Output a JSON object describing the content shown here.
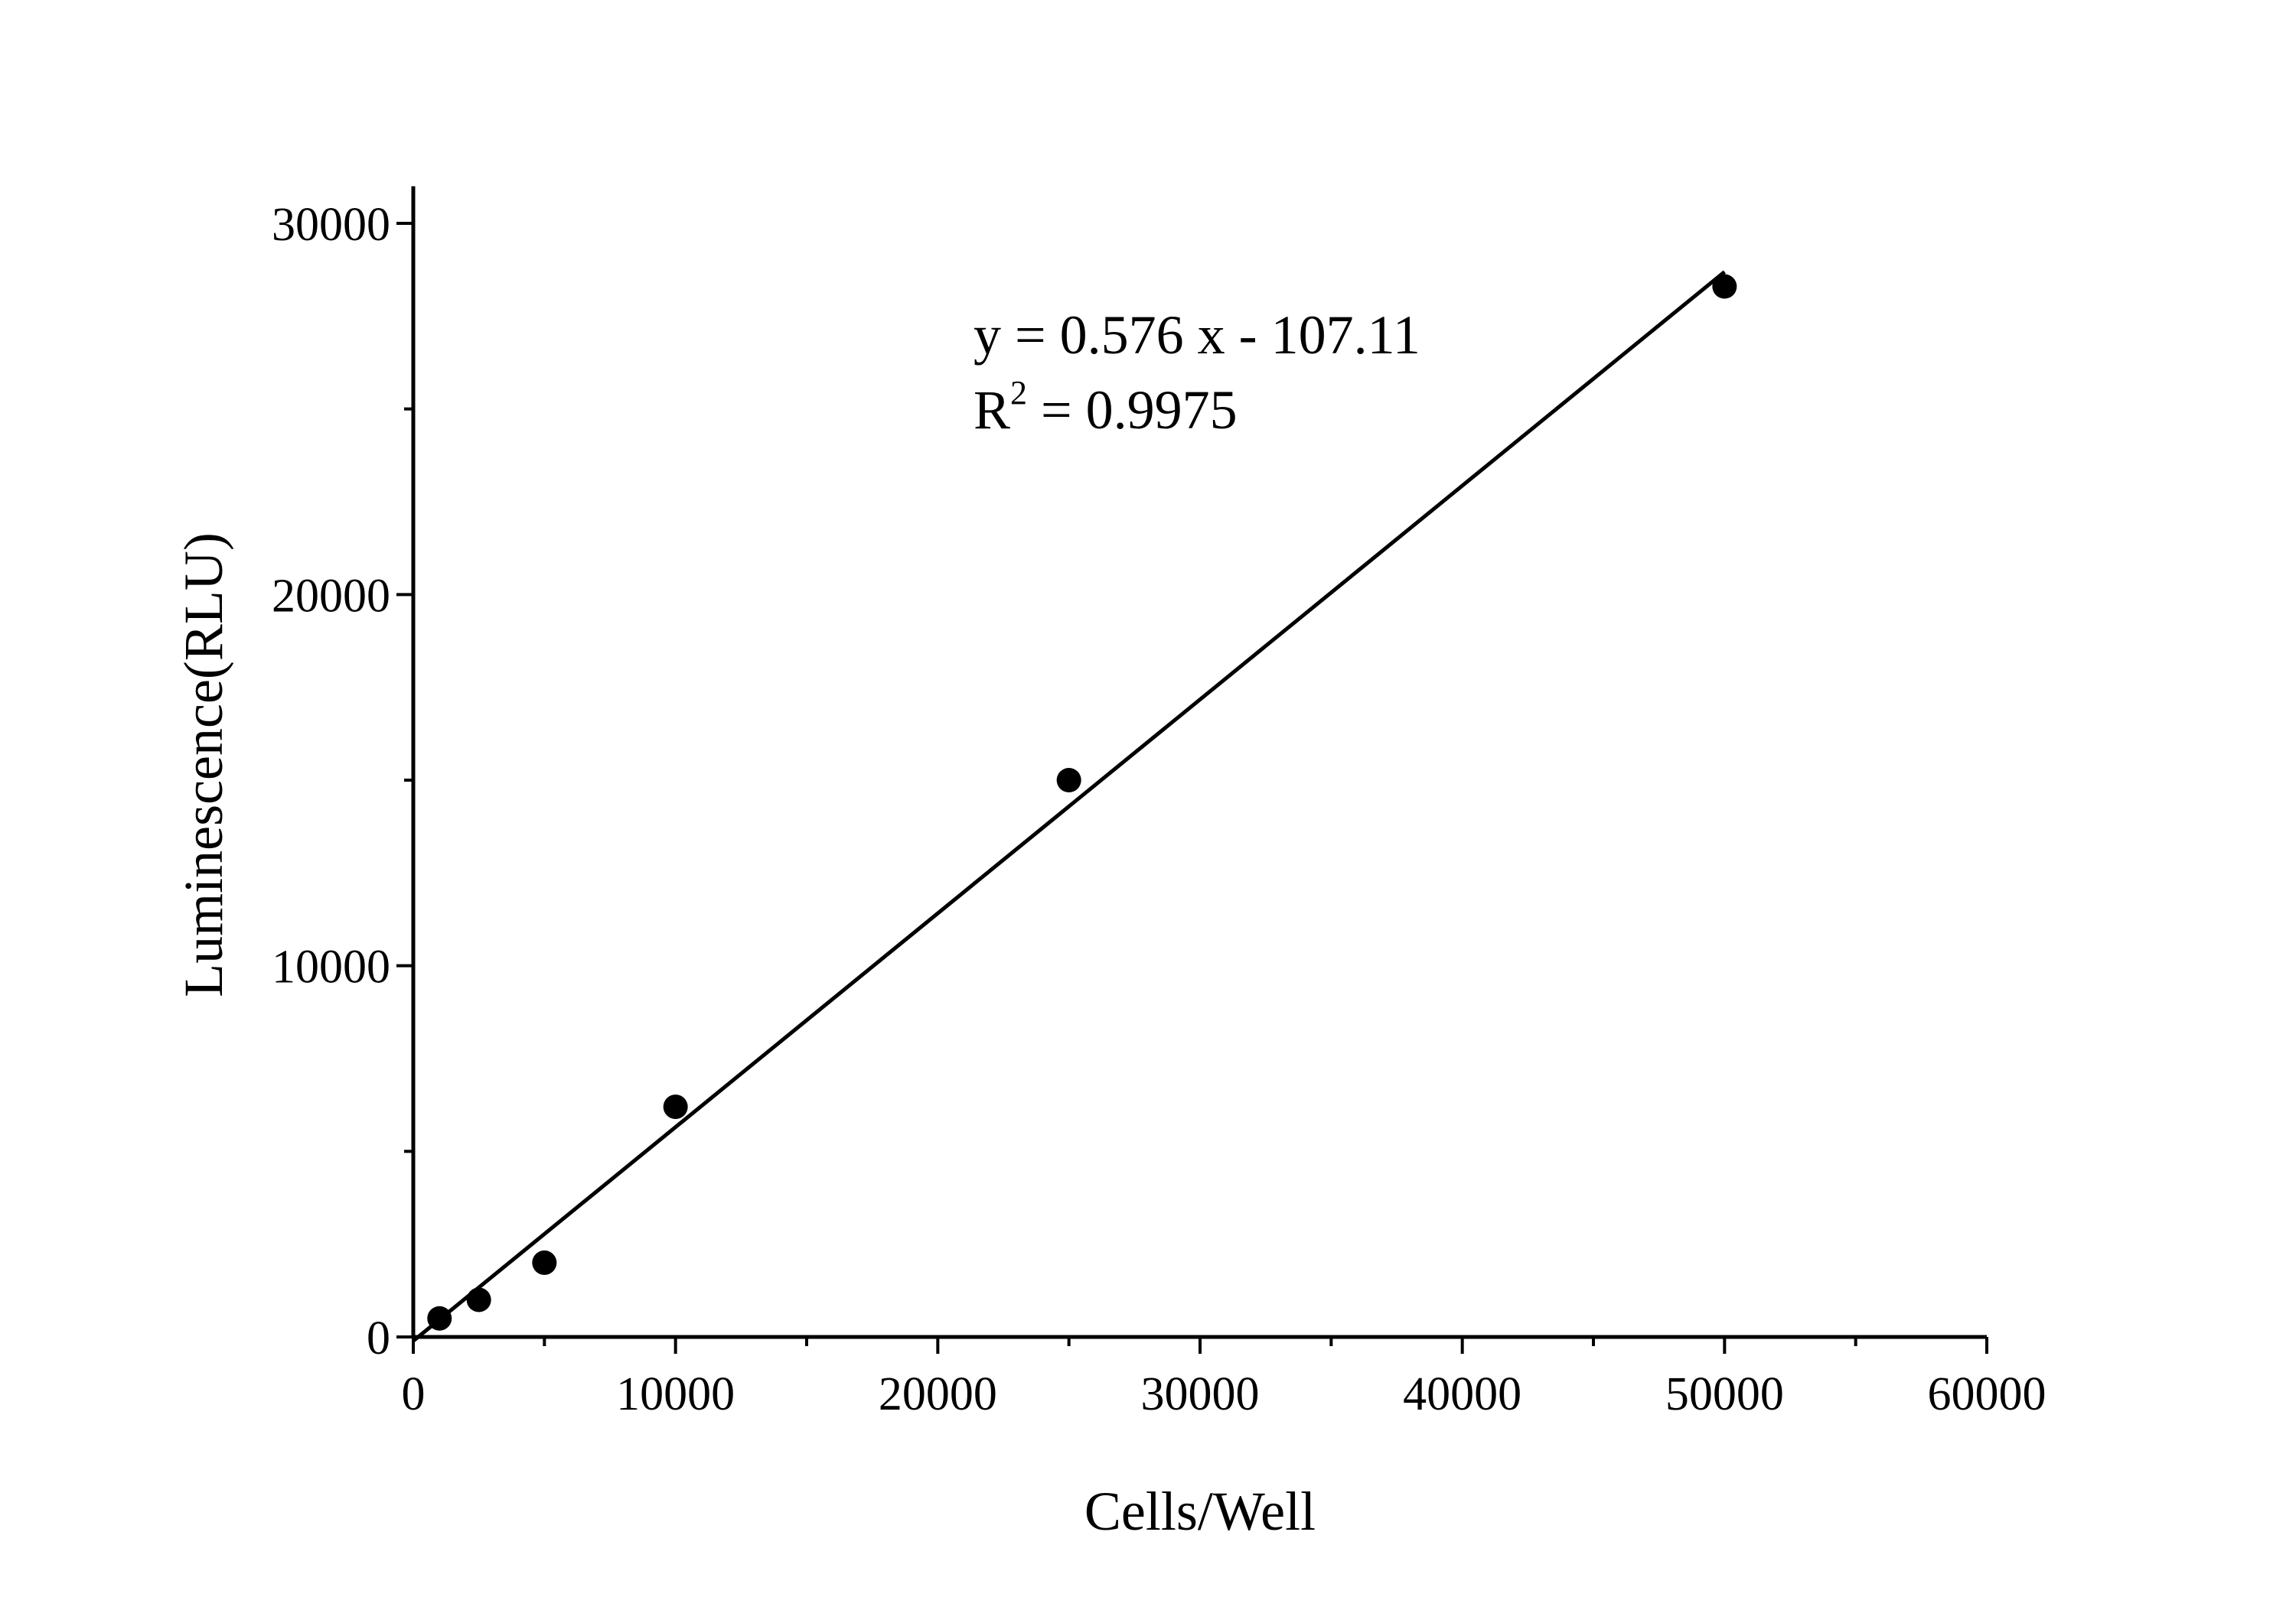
{
  "chart_data": {
    "type": "scatter",
    "title": "",
    "xlabel": "Cells/Well",
    "ylabel": "Luminescence(RLU)",
    "xlim": [
      0,
      60000
    ],
    "ylim": [
      0,
      31000
    ],
    "xticks": [
      0,
      10000,
      20000,
      30000,
      40000,
      50000,
      60000
    ],
    "yticks": [
      0,
      10000,
      20000,
      30000
    ],
    "xtick_labels": [
      "0",
      "10000",
      "20000",
      "30000",
      "40000",
      "50000",
      "60000"
    ],
    "ytick_labels": [
      "0",
      "10000",
      "20000",
      "30000"
    ],
    "grid": false,
    "x": [
      1000,
      2500,
      5000,
      10000,
      25000,
      50000
    ],
    "y": [
      500,
      1000,
      2000,
      6200,
      15000,
      28300
    ],
    "fit": {
      "slope": 0.576,
      "intercept": -107.11,
      "x_range": [
        0,
        50000
      ]
    },
    "annotations": {
      "equation": "y = 0.576 x - 107.11",
      "r2_prefix": "R",
      "r2_sup": "2",
      "r2_value": " = 0.9975"
    },
    "colors": {
      "points": "#000000",
      "line": "#000000"
    }
  }
}
